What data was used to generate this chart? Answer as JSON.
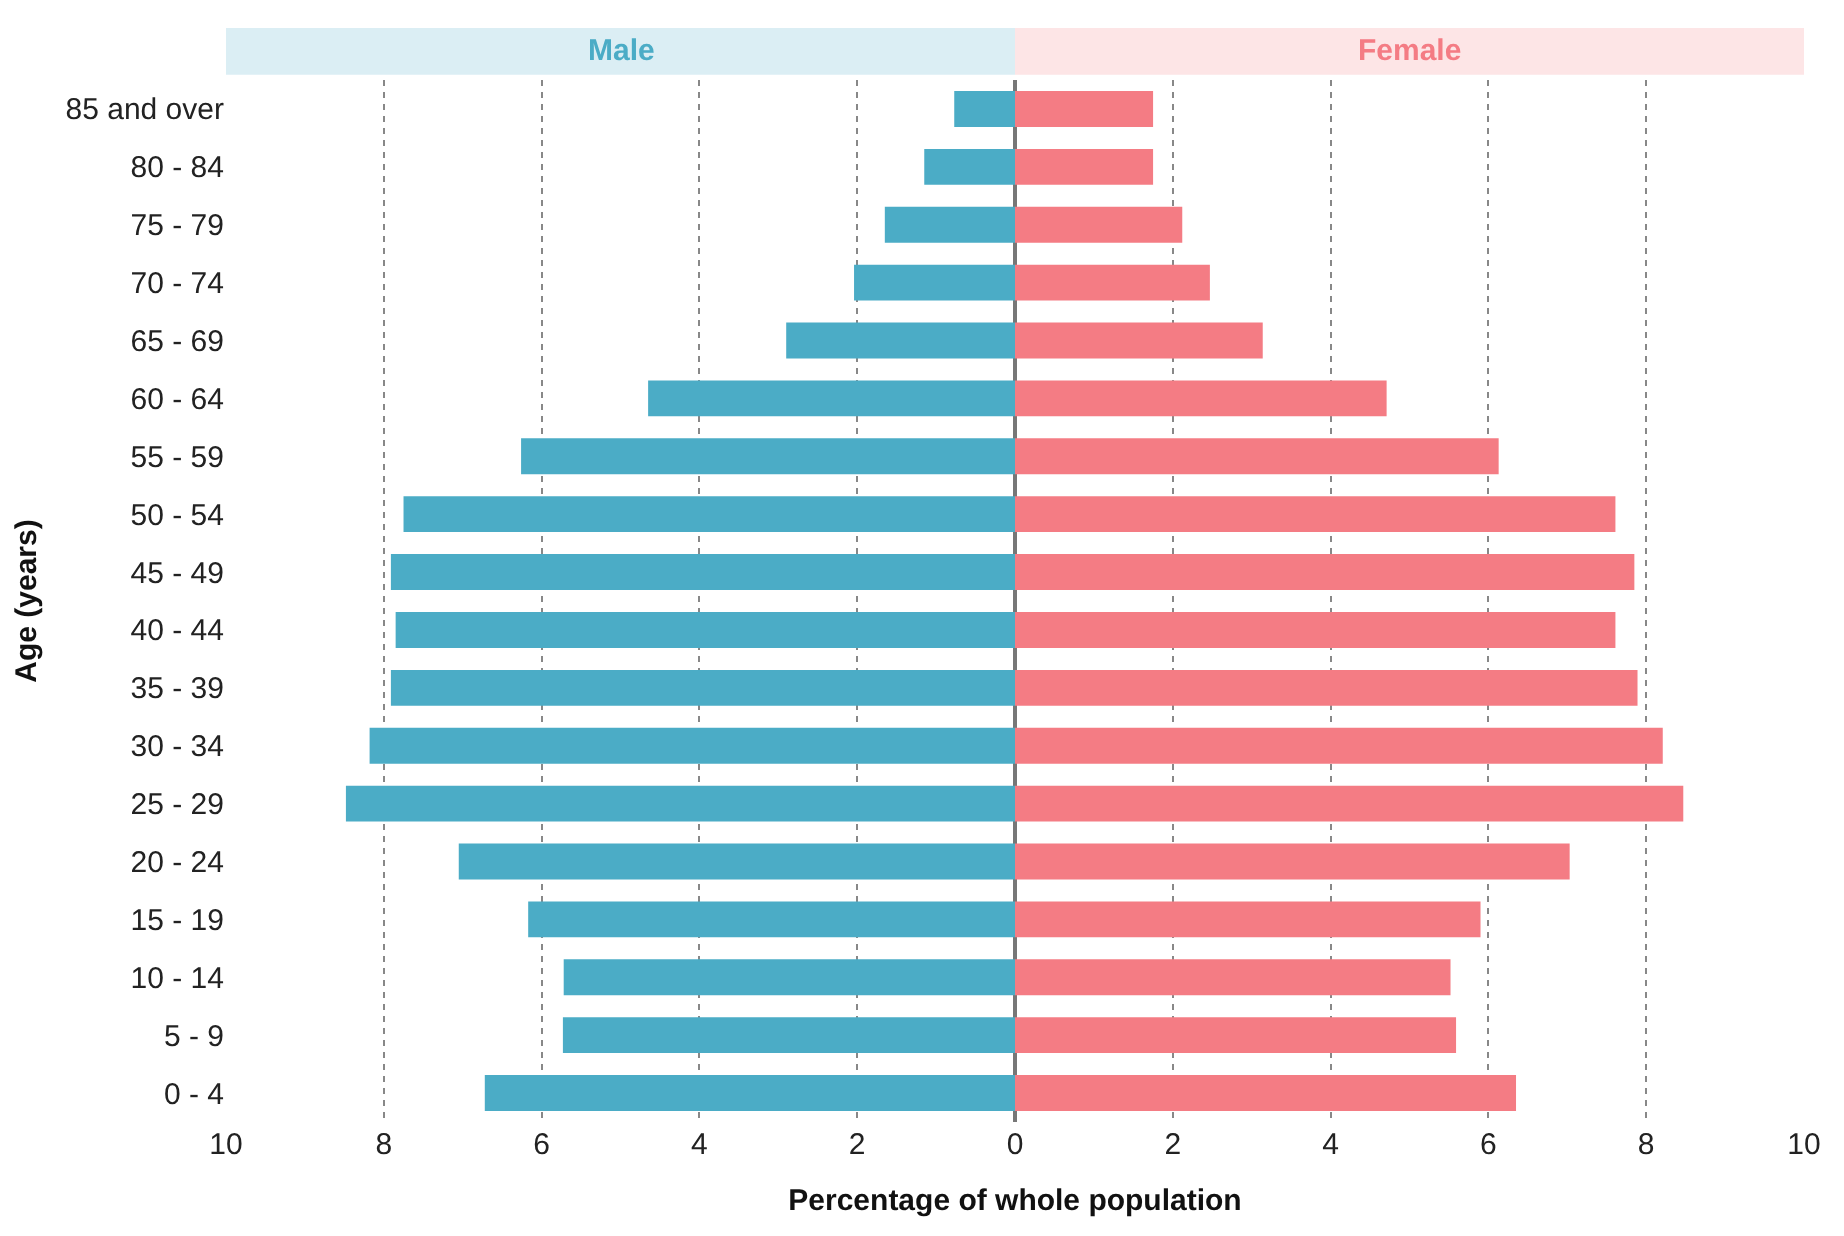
{
  "chart_data": {
    "type": "bar",
    "orientation": "horizontal",
    "xlabel": "Percentage of whole population",
    "ylabel": "Age (years)",
    "categories": [
      "85 and over",
      "80 - 84",
      "75 - 79",
      "70 - 74",
      "65 - 69",
      "60 - 64",
      "55 - 59",
      "50 - 54",
      "45 - 49",
      "40 - 44",
      "35 - 39",
      "30 - 34",
      "25 - 29",
      "20 - 24",
      "15 - 19",
      "10 - 14",
      "5 - 9",
      "0 - 4"
    ],
    "series": [
      {
        "name": "Male",
        "color": "#4bacc6",
        "values": [
          -0.77,
          -1.15,
          -1.65,
          -2.04,
          -2.9,
          -4.65,
          -6.26,
          -7.75,
          -7.91,
          -7.85,
          -7.91,
          -8.18,
          -8.48,
          -7.05,
          -6.17,
          -5.72,
          -5.73,
          -6.72
        ]
      },
      {
        "name": "Female",
        "color": "#f47c84",
        "values": [
          1.75,
          1.75,
          2.12,
          2.47,
          3.14,
          4.71,
          6.13,
          7.61,
          7.85,
          7.61,
          7.89,
          8.21,
          8.47,
          7.03,
          5.9,
          5.52,
          5.59,
          6.35
        ]
      }
    ],
    "xlim": [
      -10,
      10
    ],
    "xticks": [
      {
        "value": -10,
        "label": "10"
      },
      {
        "value": -8,
        "label": "8"
      },
      {
        "value": -6,
        "label": "6"
      },
      {
        "value": -4,
        "label": "4"
      },
      {
        "value": -2,
        "label": "2"
      },
      0,
      2,
      4,
      6,
      8,
      10
    ],
    "grid": "x",
    "legend": false,
    "stacked": true
  }
}
